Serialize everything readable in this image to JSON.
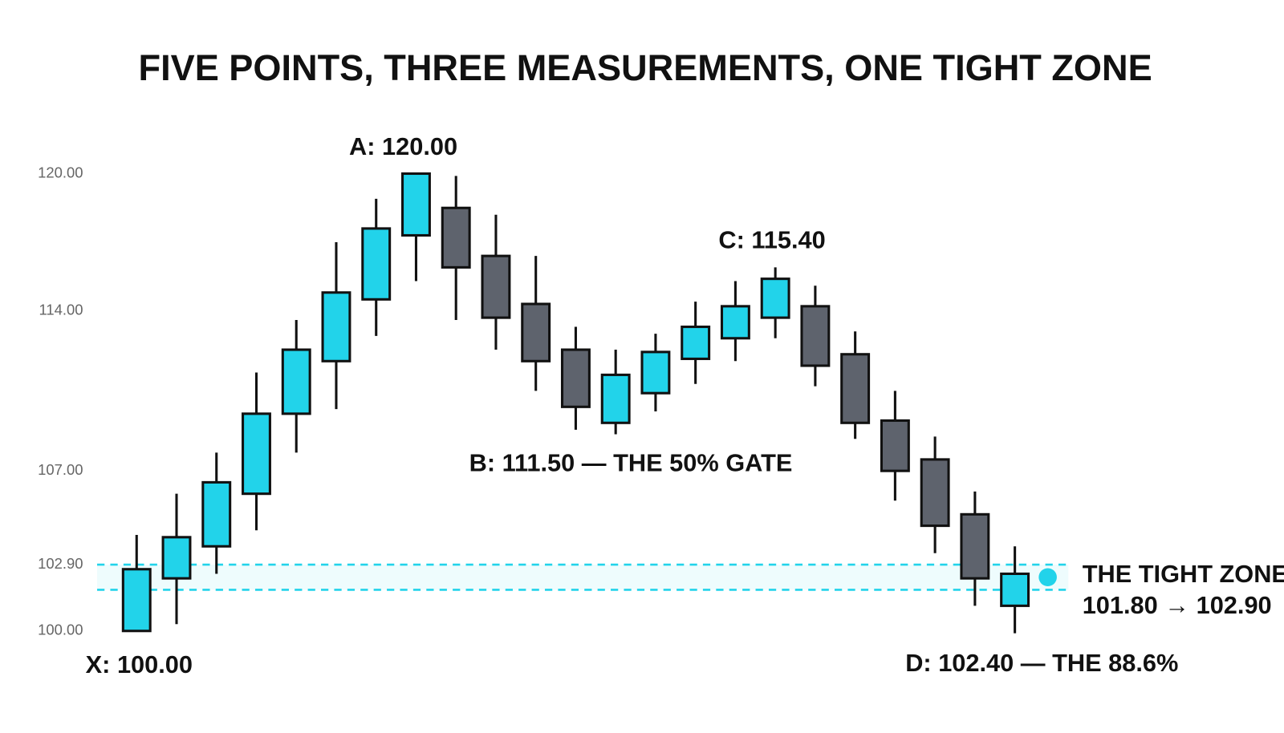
{
  "chart_data": {
    "type": "candlestick",
    "title": "FIVE POINTS, THREE MEASUREMENTS, ONE TIGHT ZONE",
    "open": [
      100.0,
      102.3,
      103.7,
      106.0,
      109.5,
      111.8,
      114.5,
      117.3,
      118.5,
      116.4,
      114.3,
      112.3,
      109.1,
      110.4,
      111.9,
      112.8,
      113.7,
      114.2,
      112.1,
      109.2,
      107.5,
      105.1,
      101.1
    ],
    "high": [
      104.2,
      106.0,
      107.8,
      111.3,
      113.6,
      117.0,
      118.9,
      120.0,
      119.9,
      118.2,
      116.4,
      113.3,
      112.3,
      113.0,
      114.4,
      115.3,
      115.9,
      115.1,
      113.1,
      110.5,
      108.5,
      106.1,
      103.7
    ],
    "low": [
      100.0,
      100.3,
      102.5,
      104.4,
      107.8,
      109.7,
      112.9,
      115.3,
      113.6,
      112.3,
      110.5,
      108.8,
      108.6,
      109.6,
      110.8,
      111.8,
      112.8,
      110.7,
      108.4,
      105.7,
      103.4,
      101.1,
      99.9
    ],
    "close": [
      102.7,
      104.1,
      106.5,
      109.5,
      112.3,
      114.8,
      117.6,
      120.0,
      115.9,
      113.7,
      111.8,
      109.8,
      111.2,
      112.2,
      113.3,
      114.2,
      115.4,
      111.6,
      109.1,
      107.0,
      104.6,
      102.3,
      102.5
    ],
    "up_color": "#22d3ea",
    "down_color": "#5e636d",
    "ylim": [
      100,
      120
    ],
    "yticks": [
      {
        "value": 100,
        "label": "100.00"
      },
      {
        "value": 102.9,
        "label": "102.90"
      },
      {
        "value": 107,
        "label": "107.00"
      },
      {
        "value": 114,
        "label": "114.00"
      },
      {
        "value": 120,
        "label": "120.00"
      }
    ],
    "zone": {
      "low": 101.8,
      "high": 102.9,
      "color": "#22d3ea",
      "label": "THE TIGHT ZONE",
      "range_label": "101.80 → 102.90"
    },
    "annotations": [
      "X: 100.00",
      "A: 120.00",
      "B: 111.50 — THE 50% GATE",
      "C: 115.40",
      "D: 102.40 — THE 88.6%"
    ]
  }
}
